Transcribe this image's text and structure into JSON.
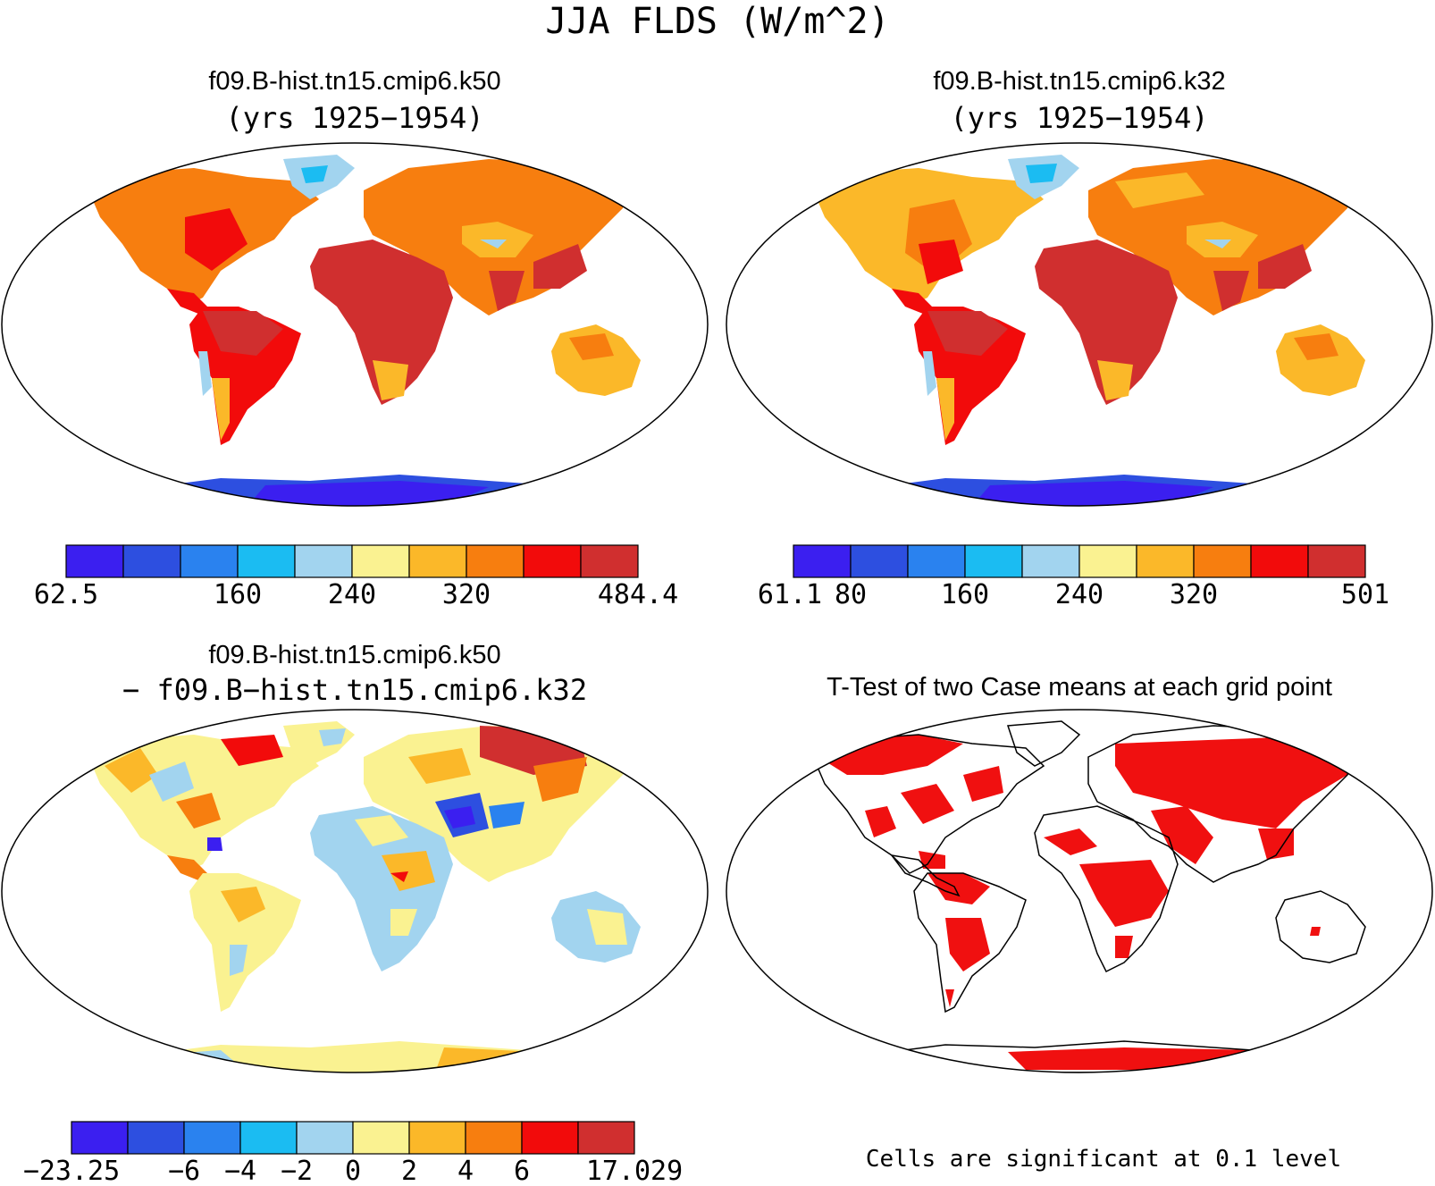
{
  "main_title": "JJA FLDS (W/m^2)",
  "colors": {
    "ncl_cold_to_warm": [
      "#3b1ff0",
      "#2d4fe0",
      "#2a82ef",
      "#1bbcf2",
      "#a2d4ef",
      "#faf291",
      "#fbb829",
      "#f77e0f",
      "#f20b0b",
      "#d02f2f"
    ],
    "significant": "#f01010",
    "coastline": "#000000"
  },
  "panels": [
    {
      "id": "k50",
      "title_line1": "f09.B-hist.tn15.cmip6.k50",
      "title_line2": "(yrs 1925−1954)",
      "colorbar_labels": [
        "62.5",
        "160",
        "240",
        "320",
        "484.4"
      ]
    },
    {
      "id": "k32",
      "title_line1": "f09.B-hist.tn15.cmip6.k32",
      "title_line2": "(yrs 1925−1954)",
      "colorbar_labels": [
        "61.1",
        "80",
        "160",
        "240",
        "320",
        "501"
      ]
    },
    {
      "id": "diff",
      "title_line1": "f09.B-hist.tn15.cmip6.k50",
      "title_line2": "− f09.B−hist.tn15.cmip6.k32",
      "colorbar_labels": [
        "−23.25",
        "−6",
        "−4",
        "−2",
        "0",
        "2",
        "4",
        "6",
        "17.029"
      ]
    },
    {
      "id": "ttest",
      "title_line1": "T-Test of two Case means at each grid point",
      "footnote": "Cells are significant at 0.1 level"
    }
  ]
}
